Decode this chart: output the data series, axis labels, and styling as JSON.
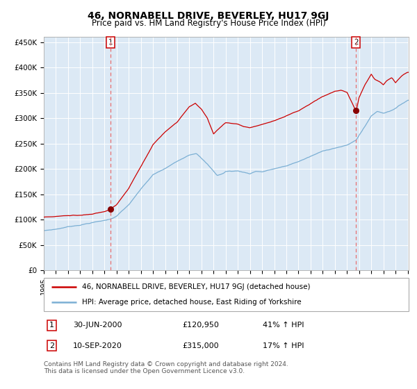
{
  "title": "46, NORNABELL DRIVE, BEVERLEY, HU17 9GJ",
  "subtitle": "Price paid vs. HM Land Registry's House Price Index (HPI)",
  "title_fontsize": 10,
  "subtitle_fontsize": 8.5,
  "plot_bg_color": "#dce9f5",
  "red_line_color": "#cc0000",
  "blue_line_color": "#7bafd4",
  "marker_color": "#880000",
  "dashed_color": "#e87070",
  "sale1_date_num": 2000.5,
  "sale1_price": 120950,
  "sale2_date_num": 2020.75,
  "sale2_price": 315000,
  "ylim": [
    0,
    460000
  ],
  "yticks": [
    0,
    50000,
    100000,
    150000,
    200000,
    250000,
    300000,
    350000,
    400000,
    450000
  ],
  "ytick_labels": [
    "£0",
    "£50K",
    "£100K",
    "£150K",
    "£200K",
    "£250K",
    "£300K",
    "£350K",
    "£400K",
    "£450K"
  ],
  "legend1": "46, NORNABELL DRIVE, BEVERLEY, HU17 9GJ (detached house)",
  "legend2": "HPI: Average price, detached house, East Riding of Yorkshire",
  "sale1_text": "30-JUN-2000",
  "sale1_amount": "£120,950",
  "sale1_hpi": "41% ↑ HPI",
  "sale2_text": "10-SEP-2020",
  "sale2_amount": "£315,000",
  "sale2_hpi": "17% ↑ HPI",
  "footer": "Contains HM Land Registry data © Crown copyright and database right 2024.\nThis data is licensed under the Open Government Licence v3.0."
}
